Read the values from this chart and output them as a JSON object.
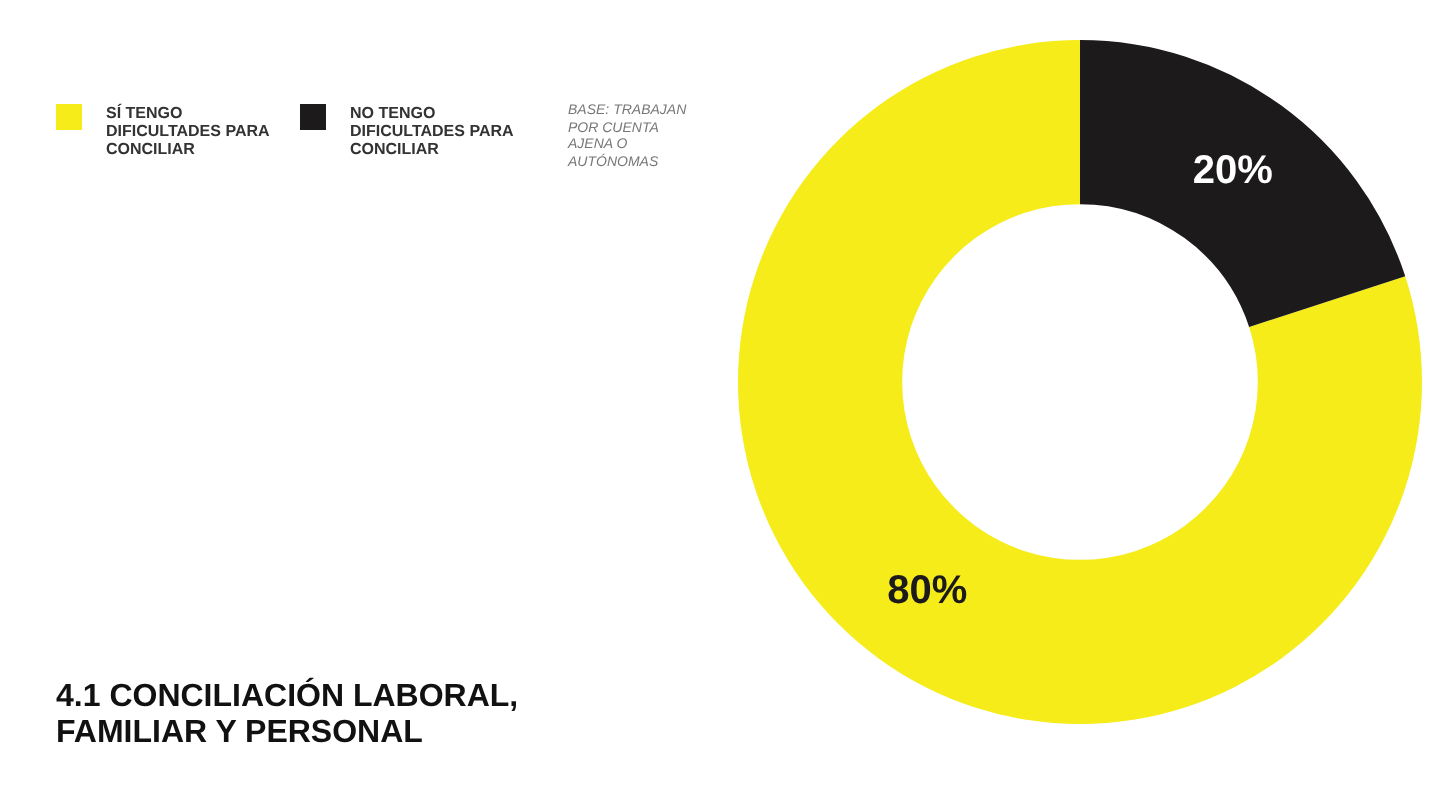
{
  "chart_data": {
    "type": "donut",
    "title": "4.1 CONCILIACIÓN LABORAL, FAMILIAR Y PERSONAL",
    "categories": [
      "SÍ TENGO DIFICULTADES PARA CONCILIAR",
      "NO TENGO DIFICULTADES PARA CONCILIAR"
    ],
    "values": [
      80,
      20
    ],
    "colors": [
      "#f5ec1a",
      "#1c1a1a"
    ],
    "value_labels": [
      "80%",
      "20%"
    ],
    "legend": "top left",
    "annotations": [
      "BASE: TRABAJAN POR CUENTA AJENA O AUTÓNOMAS"
    ]
  }
}
